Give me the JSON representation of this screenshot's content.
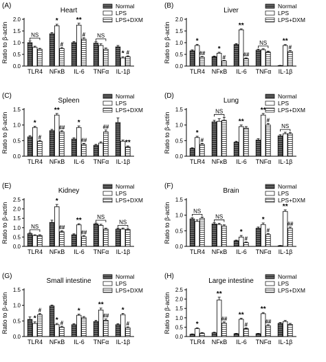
{
  "legend_labels": [
    "Normal",
    "LPS",
    "LPS+DXM"
  ],
  "chart_data": [
    {
      "type": "bar",
      "panel_label": "(A)",
      "title": "Heart",
      "ylabel": "Ratio to β-actin",
      "ylim": [
        0,
        2.0
      ],
      "yticks": [
        0.0,
        0.5,
        1.0,
        1.5,
        2.0
      ],
      "categories": [
        "TLR4",
        "NFκB",
        "IL-6",
        "TNFα",
        "IL-1β"
      ],
      "series": [
        {
          "name": "Normal",
          "values": [
            1.0,
            1.38,
            1.0,
            0.98,
            0.82
          ]
        },
        {
          "name": "LPS",
          "values": [
            0.8,
            1.72,
            1.75,
            0.88,
            0.35
          ]
        },
        {
          "name": "LPS+DXM",
          "values": [
            0.72,
            0.75,
            1.15,
            0.72,
            0.4
          ]
        }
      ],
      "errors": [
        [
          0.08,
          0.05,
          0.05,
          0.06,
          0.06
        ],
        [
          0.05,
          0.07,
          0.08,
          0.07,
          0.04
        ],
        [
          0.04,
          0.05,
          0.06,
          0.05,
          0.04
        ]
      ],
      "annotations": [
        {
          "text": "NS",
          "group": 0,
          "bracket": true
        },
        {
          "text": "*",
          "group": 1,
          "series": 1
        },
        {
          "text": "#",
          "group": 1,
          "series": 2
        },
        {
          "text": "**",
          "group": 2,
          "series": 1
        },
        {
          "text": "#",
          "group": 2,
          "series": 2
        },
        {
          "text": "NS",
          "group": 3,
          "bracket": true
        },
        {
          "text": "*",
          "group": 4,
          "series": 1
        },
        {
          "text": "#",
          "group": 4,
          "series": 2
        }
      ]
    },
    {
      "type": "bar",
      "panel_label": "(B)",
      "title": "Liver",
      "ylabel": "Ratio to β-actin",
      "ylim": [
        0,
        2.0
      ],
      "yticks": [
        0.0,
        0.5,
        1.0,
        1.5,
        2.0
      ],
      "categories": [
        "TLR4",
        "NFκB",
        "IL-6",
        "TNFα",
        "IL-1β"
      ],
      "series": [
        {
          "name": "Normal",
          "values": [
            0.65,
            0.4,
            0.92,
            0.68,
            0.02
          ]
        },
        {
          "name": "LPS",
          "values": [
            0.88,
            0.55,
            1.55,
            0.7,
            0.88
          ]
        },
        {
          "name": "LPS+DXM",
          "values": [
            0.38,
            0.22,
            0.32,
            0.6,
            0.62
          ]
        }
      ],
      "errors": [
        [
          0.04,
          0.03,
          0.04,
          0.04,
          0.01
        ],
        [
          0.05,
          0.04,
          0.04,
          0.04,
          0.04
        ],
        [
          0.03,
          0.02,
          0.03,
          0.04,
          0.04
        ]
      ],
      "annotations": [
        {
          "text": "*",
          "group": 0,
          "series": 1
        },
        {
          "text": "##",
          "group": 0,
          "series": 2
        },
        {
          "text": "*",
          "group": 1,
          "series": 1
        },
        {
          "text": "#",
          "group": 1,
          "series": 2
        },
        {
          "text": "**",
          "group": 2,
          "series": 1
        },
        {
          "text": "##",
          "group": 2,
          "series": 2
        },
        {
          "text": "NS",
          "group": 3,
          "bracket": true
        },
        {
          "text": "**",
          "group": 4,
          "series": 1
        },
        {
          "text": "#",
          "group": 4,
          "series": 2
        }
      ]
    },
    {
      "type": "bar",
      "panel_label": "(C)",
      "title": "Spleen",
      "ylabel": "Ratio to β-actin",
      "ylim": [
        0,
        1.5
      ],
      "yticks": [
        0.0,
        0.5,
        1.0,
        1.5
      ],
      "categories": [
        "TLR4",
        "NFκB",
        "IL-6",
        "TNFα",
        "IL-1β"
      ],
      "series": [
        {
          "name": "Normal",
          "values": [
            0.62,
            0.82,
            0.55,
            0.35,
            1.08
          ]
        },
        {
          "name": "LPS",
          "values": [
            0.92,
            1.32,
            0.92,
            0.42,
            0.48
          ]
        },
        {
          "name": "LPS+DXM",
          "values": [
            0.48,
            0.78,
            0.38,
            0.78,
            0.3
          ]
        }
      ],
      "errors": [
        [
          0.04,
          0.04,
          0.04,
          0.03,
          0.15
        ],
        [
          0.04,
          0.05,
          0.05,
          0.04,
          0.04
        ],
        [
          0.03,
          0.04,
          0.03,
          0.06,
          0.03
        ]
      ],
      "annotations": [
        {
          "text": "*",
          "group": 0,
          "series": 1
        },
        {
          "text": "#",
          "group": 0,
          "series": 2
        },
        {
          "text": "**",
          "group": 1,
          "series": 1
        },
        {
          "text": "##",
          "group": 1,
          "series": 2
        },
        {
          "text": "*",
          "group": 2,
          "series": 1
        },
        {
          "text": "##",
          "group": 2,
          "series": 2
        },
        {
          "text": "##",
          "group": 3,
          "series": 2
        },
        {
          "text": "**",
          "group": 4,
          "series": 2
        }
      ]
    },
    {
      "type": "bar",
      "panel_label": "(D)",
      "title": "Lung",
      "ylabel": "Ratio to β-actin",
      "ylim": [
        0,
        1.5
      ],
      "yticks": [
        0.0,
        0.5,
        1.0,
        1.5
      ],
      "categories": [
        "TLR4",
        "NFκB",
        "IL-6",
        "TNFα",
        "IL-1β"
      ],
      "series": [
        {
          "name": "Normal",
          "values": [
            0.25,
            1.1,
            0.45,
            0.52,
            0.65
          ]
        },
        {
          "name": "LPS",
          "values": [
            0.6,
            1.12,
            0.95,
            1.32,
            0.72
          ]
        },
        {
          "name": "LPS+DXM",
          "values": [
            0.38,
            1.15,
            0.9,
            1.0,
            0.72
          ]
        }
      ],
      "errors": [
        [
          0.02,
          0.05,
          0.03,
          0.04,
          0.04
        ],
        [
          0.04,
          0.08,
          0.05,
          0.05,
          0.05
        ],
        [
          0.03,
          0.1,
          0.05,
          0.05,
          0.04
        ]
      ],
      "annotations": [
        {
          "text": "*",
          "group": 0,
          "series": 1
        },
        {
          "text": "#",
          "group": 0,
          "series": 2
        },
        {
          "text": "NS",
          "group": 1,
          "bracket": true
        },
        {
          "text": "**",
          "group": 2,
          "series": 1
        },
        {
          "text": "**",
          "group": 3,
          "series": 1
        },
        {
          "text": "#",
          "group": 3,
          "series": 2
        },
        {
          "text": "NS",
          "group": 4,
          "bracket": true
        }
      ]
    },
    {
      "type": "bar",
      "panel_label": "(E)",
      "title": "Kidney",
      "ylabel": "Ratio to β-actin",
      "ylim": [
        0,
        2.5
      ],
      "yticks": [
        0.0,
        0.5,
        1.0,
        1.5,
        2.0,
        2.5
      ],
      "categories": [
        "TLR4",
        "NFκB",
        "IL-6",
        "TNFα",
        "IL-1β"
      ],
      "series": [
        {
          "name": "Normal",
          "values": [
            0.68,
            1.28,
            0.62,
            1.2,
            0.92
          ]
        },
        {
          "name": "LPS",
          "values": [
            0.58,
            2.12,
            1.15,
            1.12,
            0.92
          ]
        },
        {
          "name": "LPS+DXM",
          "values": [
            0.58,
            0.78,
            0.52,
            0.92,
            0.9
          ]
        }
      ],
      "errors": [
        [
          0.06,
          0.12,
          0.05,
          0.05,
          0.06
        ],
        [
          0.04,
          0.12,
          0.06,
          0.06,
          0.06
        ],
        [
          0.04,
          0.06,
          0.05,
          0.05,
          0.06
        ]
      ],
      "annotations": [
        {
          "text": "NS",
          "group": 0,
          "bracket": true
        },
        {
          "text": "*",
          "group": 1,
          "series": 1
        },
        {
          "text": "##",
          "group": 1,
          "series": 2
        },
        {
          "text": "**",
          "group": 2,
          "series": 1
        },
        {
          "text": "##",
          "group": 2,
          "series": 2
        },
        {
          "text": "NS",
          "group": 3,
          "bracket": true
        },
        {
          "text": "NS",
          "group": 4,
          "bracket": true
        }
      ]
    },
    {
      "type": "bar",
      "panel_label": "(F)",
      "title": "Brain",
      "ylabel": "Ratio to β-actin",
      "ylim": [
        0,
        1.5
      ],
      "yticks": [
        0.0,
        0.5,
        1.0,
        1.5
      ],
      "categories": [
        "TLR4",
        "NFκB",
        "IL-6",
        "TNFα",
        "IL-1β"
      ],
      "series": [
        {
          "name": "Normal",
          "values": [
            0.88,
            0.72,
            0.18,
            0.58,
            0.02
          ]
        },
        {
          "name": "LPS",
          "values": [
            0.8,
            0.7,
            0.3,
            0.7,
            1.12
          ]
        },
        {
          "name": "LPS+DXM",
          "values": [
            0.9,
            0.65,
            0.12,
            0.38,
            0.58
          ]
        }
      ],
      "errors": [
        [
          0.04,
          0.04,
          0.02,
          0.04,
          0.01
        ],
        [
          0.05,
          0.04,
          0.05,
          0.05,
          0.05
        ],
        [
          0.04,
          0.04,
          0.02,
          0.03,
          0.04
        ]
      ],
      "annotations": [
        {
          "text": "NS",
          "group": 0,
          "bracket": true
        },
        {
          "text": "NS",
          "group": 1,
          "bracket": true
        },
        {
          "text": "*",
          "group": 2,
          "series": 1
        },
        {
          "text": "#",
          "group": 2,
          "series": 2
        },
        {
          "text": "*",
          "group": 3,
          "series": 1
        },
        {
          "text": "#",
          "group": 3,
          "series": 2
        },
        {
          "text": "**",
          "group": 4,
          "series": 1
        },
        {
          "text": "##",
          "group": 4,
          "series": 2
        }
      ]
    },
    {
      "type": "bar",
      "panel_label": "(G)",
      "title": "Small intestine",
      "ylabel": "Ratio to β-actin",
      "ylim": [
        0,
        1.5
      ],
      "yticks": [
        0.0,
        0.5,
        1.0,
        1.5
      ],
      "categories": [
        "TLR4",
        "NFκB",
        "IL-6",
        "TNFα",
        "IL-1β"
      ],
      "series": [
        {
          "name": "Normal",
          "values": [
            0.55,
            0.98,
            0.38,
            0.48,
            0.38
          ]
        },
        {
          "name": "LPS",
          "values": [
            0.42,
            0.38,
            0.68,
            0.85,
            0.7
          ]
        },
        {
          "name": "LPS+DXM",
          "values": [
            0.7,
            0.3,
            0.6,
            0.52,
            0.28
          ]
        }
      ],
      "errors": [
        [
          0.08,
          0.03,
          0.03,
          0.04,
          0.03
        ],
        [
          0.05,
          0.04,
          0.04,
          0.06,
          0.04
        ],
        [
          0.04,
          0.03,
          0.04,
          0.04,
          0.03
        ]
      ],
      "annotations": [
        {
          "text": "*",
          "group": 0,
          "series": 1
        },
        {
          "text": "#",
          "group": 0,
          "series": 2
        },
        {
          "text": "*",
          "group": 1,
          "series": 1
        },
        {
          "text": "#",
          "group": 1,
          "series": 2
        },
        {
          "text": "*",
          "group": 2,
          "series": 1
        },
        {
          "text": "**",
          "group": 3,
          "series": 1
        },
        {
          "text": "##",
          "group": 3,
          "series": 2
        },
        {
          "text": "*",
          "group": 4,
          "series": 1
        },
        {
          "text": "#",
          "group": 4,
          "series": 2
        }
      ]
    },
    {
      "type": "bar",
      "panel_label": "(H)",
      "title": "Large intestine",
      "ylabel": "Ratio to β-actin",
      "ylim": [
        0,
        2.5
      ],
      "yticks": [
        0.0,
        0.5,
        1.0,
        1.5,
        2.0,
        2.5
      ],
      "categories": [
        "TLR4",
        "NFκB",
        "IL-6",
        "TNFα",
        "IL-1β"
      ],
      "series": [
        {
          "name": "Normal",
          "values": [
            0.12,
            0.2,
            0.15,
            0.15,
            0.7
          ]
        },
        {
          "name": "LPS",
          "values": [
            0.42,
            1.95,
            0.92,
            1.22,
            0.8
          ]
        },
        {
          "name": "LPS+DXM",
          "values": [
            0.18,
            0.72,
            0.42,
            0.58,
            0.65
          ]
        }
      ],
      "errors": [
        [
          0.02,
          0.03,
          0.02,
          0.02,
          0.05
        ],
        [
          0.05,
          0.15,
          0.06,
          0.06,
          0.06
        ],
        [
          0.03,
          0.06,
          0.04,
          0.05,
          0.05
        ]
      ],
      "annotations": [
        {
          "text": "*",
          "group": 0,
          "series": 1
        },
        {
          "text": "**",
          "group": 1,
          "series": 1
        },
        {
          "text": "##",
          "group": 1,
          "series": 2
        },
        {
          "text": "**",
          "group": 2,
          "series": 1
        },
        {
          "text": "#",
          "group": 2,
          "series": 2
        },
        {
          "text": "**",
          "group": 3,
          "series": 1
        },
        {
          "text": "##",
          "group": 3,
          "series": 2
        }
      ]
    }
  ]
}
